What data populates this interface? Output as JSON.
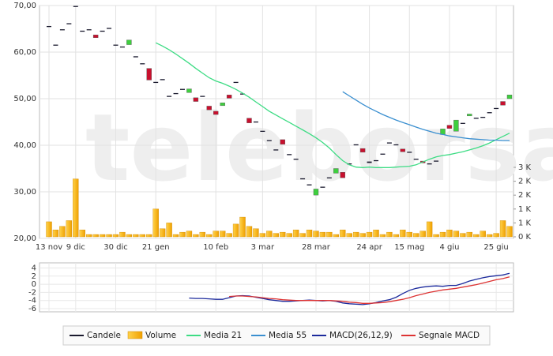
{
  "chart_data": [
    {
      "type": "candlestick",
      "watermark": "teleborsa",
      "categories": [
        "13 nov",
        null,
        null,
        null,
        "9 dic",
        null,
        null,
        null,
        null,
        null,
        "30 dic",
        null,
        null,
        null,
        null,
        null,
        "21 gen",
        null,
        null,
        null,
        null,
        null,
        null,
        null,
        null,
        "10 feb",
        null,
        null,
        null,
        null,
        null,
        null,
        "3 mar",
        null,
        null,
        null,
        null,
        null,
        null,
        null,
        "28 mar",
        null,
        null,
        null,
        null,
        null,
        null,
        null,
        "24 apr",
        null,
        null,
        null,
        null,
        null,
        "15 mag",
        null,
        null,
        null,
        null,
        null,
        "4 giu",
        null,
        null,
        null,
        null,
        null,
        null,
        "25 giu",
        null,
        null
      ],
      "ylim": [
        20,
        70
      ],
      "yticks": [
        {
          "value": 20,
          "label": "20,00"
        },
        {
          "value": 30,
          "label": "30,00"
        },
        {
          "value": 40,
          "label": "40,00"
        },
        {
          "value": 50,
          "label": "50,00"
        },
        {
          "value": 60,
          "label": "60,00"
        },
        {
          "value": 70,
          "label": "70,00"
        }
      ],
      "y2lim": [
        0,
        3000
      ],
      "y2ticks": [
        {
          "value": 0,
          "label": "0 K"
        },
        {
          "value": 600,
          "label": "1 K"
        },
        {
          "value": 1200,
          "label": "1 K"
        },
        {
          "value": 1800,
          "label": "2 K"
        },
        {
          "value": 2400,
          "label": "2 K"
        },
        {
          "value": 3000,
          "label": "3 K"
        }
      ],
      "grid": true,
      "series": [
        {
          "name": "Candele",
          "type": "candlestick",
          "color": "#1a1a2e",
          "up_color": "#3ecf3e",
          "down_color": "#c8102e",
          "open": [
            65.6,
            61.6,
            64.9,
            66.2,
            69.9,
            64.6,
            64.9,
            63.7,
            64.6,
            65.2,
            61.6,
            61.2,
            61.6,
            59.1,
            57.6,
            56.5,
            53.6,
            54.2,
            50.6,
            51.2,
            52.1,
            51.3,
            50.2,
            50.6,
            48.4,
            47.3,
            48.5,
            50.8,
            53.6,
            51.1,
            45.8,
            45.1,
            43.1,
            41.1,
            39.1,
            41.2,
            38.1,
            37.1,
            32.9,
            31.6,
            29.3,
            31.1,
            33.1,
            34.0,
            34.2,
            36.1,
            40.2,
            39.3,
            36.5,
            36.8,
            38.2,
            40.6,
            40.2,
            39.2,
            38.6,
            37.1,
            36.6,
            36.1,
            36.7,
            42.3,
            44.3,
            43.0,
            44.8,
            46.3,
            45.9,
            46.1,
            47.1,
            48.0,
            49.4,
            50.0
          ],
          "close": [
            65.4,
            61.4,
            64.7,
            66.0,
            69.8,
            64.4,
            64.7,
            63.1,
            64.4,
            65.0,
            61.4,
            61.0,
            62.6,
            58.9,
            57.4,
            54.0,
            53.4,
            54.0,
            50.4,
            51.0,
            51.9,
            52.1,
            49.4,
            50.4,
            47.6,
            46.6,
            49.1,
            50.1,
            53.4,
            50.9,
            44.8,
            44.9,
            42.9,
            40.9,
            38.9,
            40.2,
            37.9,
            36.9,
            32.7,
            31.4,
            30.6,
            30.9,
            32.9,
            35.0,
            33.0,
            35.9,
            40.0,
            38.5,
            36.2,
            36.6,
            38.0,
            40.4,
            40.0,
            38.6,
            38.4,
            36.9,
            36.2,
            35.9,
            36.5,
            43.5,
            43.6,
            45.4,
            44.6,
            46.7,
            45.7,
            45.9,
            46.9,
            47.8,
            48.6,
            50.8
          ]
        },
        {
          "name": "Volume",
          "type": "bar",
          "axis": "y2",
          "color": "#f5a800",
          "values": [
            650,
            300,
            450,
            700,
            2500,
            300,
            100,
            100,
            100,
            100,
            100,
            200,
            100,
            100,
            100,
            100,
            1200,
            350,
            600,
            100,
            200,
            250,
            100,
            200,
            100,
            250,
            250,
            150,
            550,
            850,
            450,
            350,
            150,
            250,
            150,
            200,
            150,
            300,
            150,
            300,
            250,
            200,
            200,
            100,
            300,
            150,
            200,
            150,
            200,
            300,
            100,
            200,
            100,
            300,
            200,
            150,
            250,
            650,
            100,
            200,
            300,
            250,
            150,
            200,
            100,
            250,
            100,
            150,
            700,
            450
          ]
        },
        {
          "name": "Media 21",
          "type": "line",
          "color": "#3ddc84",
          "values": [
            null,
            null,
            null,
            null,
            null,
            null,
            null,
            null,
            null,
            null,
            null,
            null,
            null,
            null,
            null,
            null,
            62,
            61.3,
            60.5,
            59.6,
            58.6,
            57.6,
            56.5,
            55.5,
            54.5,
            53.8,
            53.3,
            52.7,
            52.0,
            51.2,
            50.3,
            49.3,
            48.3,
            47.3,
            46.5,
            45.7,
            44.9,
            44.1,
            43.3,
            42.5,
            41.6,
            40.6,
            39.4,
            38.0,
            36.7,
            35.8,
            35.3,
            35.2,
            35.3,
            35.2,
            35.2,
            35.2,
            35.3,
            35.4,
            35.5,
            35.8,
            36.4,
            37.0,
            37.5,
            37.8,
            38.0,
            38.3,
            38.6,
            39.0,
            39.4,
            39.9,
            40.5,
            41.2,
            41.9,
            42.6
          ]
        },
        {
          "name": "Media 55",
          "type": "line",
          "color": "#3a8fd0",
          "values": [
            null,
            null,
            null,
            null,
            null,
            null,
            null,
            null,
            null,
            null,
            null,
            null,
            null,
            null,
            null,
            null,
            null,
            null,
            null,
            null,
            null,
            null,
            null,
            null,
            null,
            null,
            null,
            null,
            null,
            null,
            null,
            null,
            null,
            null,
            null,
            null,
            null,
            null,
            null,
            null,
            null,
            null,
            null,
            null,
            51.5,
            50.6,
            49.7,
            48.8,
            48.0,
            47.3,
            46.6,
            46.0,
            45.4,
            44.9,
            44.4,
            43.9,
            43.4,
            43.0,
            42.6,
            42.3,
            42.0,
            41.8,
            41.6,
            41.4,
            41.3,
            41.2,
            41.1,
            41.1,
            41.0,
            41.0
          ]
        }
      ]
    },
    {
      "type": "line",
      "ylim": [
        -6,
        4
      ],
      "yticks": [
        -6,
        -4,
        -2,
        0,
        2,
        4
      ],
      "grid": true,
      "series": [
        {
          "name": "MACD(26,12,9)",
          "color": "#1c2a9c",
          "values": [
            null,
            null,
            null,
            null,
            null,
            null,
            null,
            null,
            null,
            null,
            null,
            null,
            null,
            null,
            null,
            null,
            null,
            null,
            null,
            null,
            null,
            -3.4,
            -3.5,
            -3.5,
            -3.6,
            -3.7,
            -3.7,
            -3.3,
            -2.9,
            -2.8,
            -2.9,
            -3.2,
            -3.5,
            -3.8,
            -4.0,
            -4.2,
            -4.2,
            -4.1,
            -4.0,
            -3.9,
            -4.0,
            -4.1,
            -4.0,
            -4.2,
            -4.6,
            -4.8,
            -4.9,
            -5.0,
            -4.8,
            -4.5,
            -4.1,
            -3.8,
            -3.2,
            -2.3,
            -1.5,
            -1.0,
            -0.7,
            -0.5,
            -0.4,
            -0.5,
            -0.3,
            -0.3,
            0.2,
            0.8,
            1.2,
            1.6,
            1.9,
            2.1,
            2.3,
            2.7
          ]
        },
        {
          "name": "Segnale MACD",
          "color": "#dd3333",
          "values": [
            null,
            null,
            null,
            null,
            null,
            null,
            null,
            null,
            null,
            null,
            null,
            null,
            null,
            null,
            null,
            null,
            null,
            null,
            null,
            null,
            null,
            null,
            null,
            null,
            null,
            null,
            null,
            -3.0,
            -2.9,
            -2.9,
            -3.0,
            -3.1,
            -3.3,
            -3.5,
            -3.6,
            -3.8,
            -3.9,
            -4.0,
            -4.0,
            -4.0,
            -4.0,
            -4.0,
            -4.0,
            -4.1,
            -4.2,
            -4.4,
            -4.5,
            -4.7,
            -4.7,
            -4.6,
            -4.5,
            -4.3,
            -4.0,
            -3.7,
            -3.3,
            -2.8,
            -2.4,
            -2.0,
            -1.7,
            -1.4,
            -1.2,
            -1.0,
            -0.7,
            -0.4,
            -0.1,
            0.3,
            0.7,
            1.1,
            1.4,
            1.8
          ]
        }
      ]
    }
  ]
}
